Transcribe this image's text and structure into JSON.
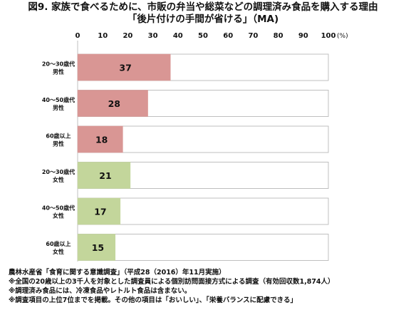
{
  "title_line1": "図9. 家族で食べるために、市販の弁当や総菜などの調理済み食品を購入する理由",
  "title_line2": "「後片付けの手間が省ける」（MA)",
  "notes": [
    "農林水産省「食育に関する意識調査」（平成28（2016）年11月実施）",
    "※全国の20歳以上の3千人を対象とした調査員による個別訪問面接方式による調査（有効回収数1,874人）",
    "※調理済み食品には、冷凍食品やレトルト食品は含まない。",
    "※調査項目の上位7位までを掲載。その他の項目は「おいしい」、「栄養バランスに配慮できる」"
  ],
  "chart_data": {
    "type": "bar",
    "orientation": "horizontal",
    "unit_label": "(%)",
    "xlim": [
      0,
      100
    ],
    "ticks": [
      "0",
      "10",
      "20",
      "30",
      "40",
      "50",
      "60",
      "70",
      "80",
      "90",
      "100"
    ],
    "categories": [
      [
        "20～30歳代",
        "男性"
      ],
      [
        "40～50歳代",
        "男性"
      ],
      [
        "60歳以上",
        "男性"
      ],
      [
        "20～30歳代",
        "女性"
      ],
      [
        "40～50歳代",
        "女性"
      ],
      [
        "60歳以上",
        "女性"
      ]
    ],
    "values": [
      37,
      28,
      18,
      21,
      17,
      15
    ],
    "colors": [
      "#d99694",
      "#d99694",
      "#d99694",
      "#c3d69b",
      "#c3d69b",
      "#c3d69b"
    ],
    "track_color": "#ffffff",
    "track_border": "#bfbfbf"
  }
}
